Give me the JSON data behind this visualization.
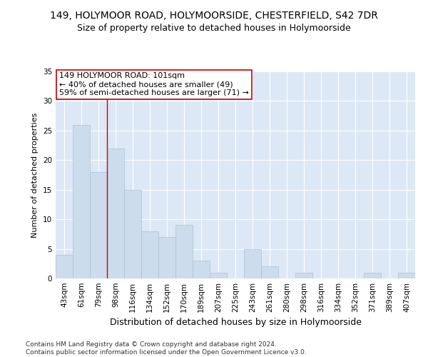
{
  "title": "149, HOLYMOOR ROAD, HOLYMOORSIDE, CHESTERFIELD, S42 7DR",
  "subtitle": "Size of property relative to detached houses in Holymoorside",
  "xlabel": "Distribution of detached houses by size in Holymoorside",
  "ylabel": "Number of detached properties",
  "bins": [
    "43sqm",
    "61sqm",
    "79sqm",
    "98sqm",
    "116sqm",
    "134sqm",
    "152sqm",
    "170sqm",
    "189sqm",
    "207sqm",
    "225sqm",
    "243sqm",
    "261sqm",
    "280sqm",
    "298sqm",
    "316sqm",
    "334sqm",
    "352sqm",
    "371sqm",
    "389sqm",
    "407sqm"
  ],
  "values": [
    4,
    26,
    18,
    22,
    15,
    8,
    7,
    9,
    3,
    1,
    0,
    5,
    2,
    0,
    1,
    0,
    0,
    0,
    1,
    0,
    1
  ],
  "bar_color": "#ccdcec",
  "bar_edge_color": "#aac0d8",
  "vline_x": 2.5,
  "vline_color": "#cc0000",
  "annotation_text": "149 HOLYMOOR ROAD: 101sqm\n← 40% of detached houses are smaller (49)\n59% of semi-detached houses are larger (71) →",
  "annotation_box_color": "#ffffff",
  "annotation_box_edge_color": "#cc0000",
  "ylim": [
    0,
    35
  ],
  "yticks": [
    0,
    5,
    10,
    15,
    20,
    25,
    30,
    35
  ],
  "footer": "Contains HM Land Registry data © Crown copyright and database right 2024.\nContains public sector information licensed under the Open Government Licence v3.0.",
  "fig_bg": "#ffffff",
  "plot_bg": "#dce8f5",
  "grid_color": "#ffffff",
  "title_fontsize": 10,
  "subtitle_fontsize": 9,
  "xlabel_fontsize": 9,
  "ylabel_fontsize": 8,
  "tick_fontsize": 7.5,
  "annotation_fontsize": 8,
  "footer_fontsize": 6.5
}
